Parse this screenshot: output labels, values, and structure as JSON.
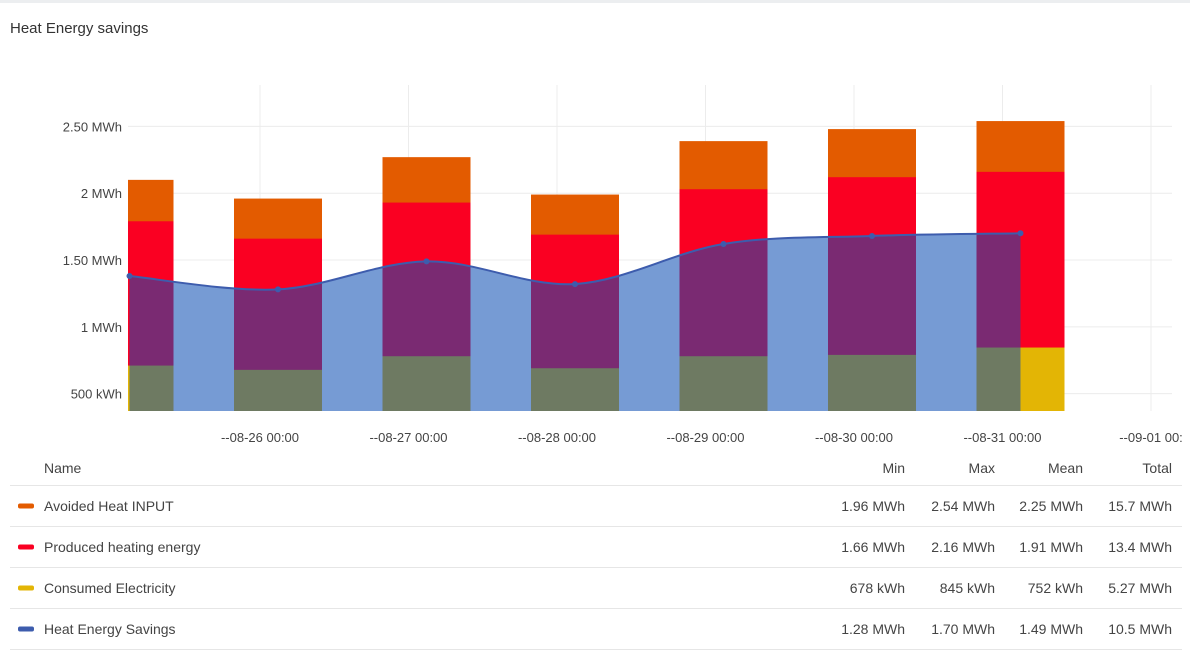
{
  "panel": {
    "title": "Heat Energy savings"
  },
  "chart_data": {
    "type": "bar",
    "title": "Heat Energy savings",
    "x": [
      "08-25",
      "08-26",
      "08-27",
      "08-28",
      "08-29",
      "08-30",
      "08-31"
    ],
    "x_ticks": [
      "--08-26 00:00",
      "--08-27 00:00",
      "--08-28 00:00",
      "--08-29 00:00",
      "--08-30 00:00",
      "--08-31 00:00",
      "--09-01 00:"
    ],
    "y_ticks": [
      {
        "value": 0.5,
        "label": "500 kWh"
      },
      {
        "value": 1.0,
        "label": "1 MWh"
      },
      {
        "value": 1.5,
        "label": "1.50 MWh"
      },
      {
        "value": 2.0,
        "label": "2 MWh"
      },
      {
        "value": 2.5,
        "label": "2.50 MWh"
      }
    ],
    "y_unit": "MWh",
    "ylim": [
      0.37,
      2.81
    ],
    "grid": true,
    "legend_placement": "bottom-table",
    "series": [
      {
        "name": "Avoided Heat INPUT",
        "kind": "bar",
        "color": "#e35b00",
        "values": [
          2.1,
          1.96,
          2.27,
          1.99,
          2.39,
          2.48,
          2.54
        ]
      },
      {
        "name": "Produced heating energy",
        "kind": "bar",
        "color": "#fa0022",
        "values": [
          1.79,
          1.66,
          1.93,
          1.69,
          2.03,
          2.12,
          2.16
        ]
      },
      {
        "name": "Consumed Electricity",
        "kind": "bar",
        "color": "#e3b505",
        "values": [
          0.71,
          0.678,
          0.78,
          0.69,
          0.78,
          0.79,
          0.845
        ]
      },
      {
        "name": "Heat Energy Savings",
        "kind": "area-line",
        "color": "#3d5cad",
        "fill": "#769bd4",
        "values": [
          1.38,
          1.28,
          1.49,
          1.32,
          1.62,
          1.68,
          1.7
        ]
      }
    ]
  },
  "legend": {
    "headers": {
      "name": "Name",
      "min": "Min",
      "max": "Max",
      "mean": "Mean",
      "total": "Total"
    },
    "rows": [
      {
        "name": "Avoided Heat INPUT",
        "color": "#e35b00",
        "min": "1.96 MWh",
        "max": "2.54 MWh",
        "mean": "2.25 MWh",
        "total": "15.7 MWh"
      },
      {
        "name": "Produced heating energy",
        "color": "#fa0022",
        "min": "1.66 MWh",
        "max": "2.16 MWh",
        "mean": "1.91 MWh",
        "total": "13.4 MWh"
      },
      {
        "name": "Consumed Electricity",
        "color": "#e3b505",
        "min": "678 kWh",
        "max": "845 kWh",
        "mean": "752 kWh",
        "total": "5.27 MWh"
      },
      {
        "name": "Heat Energy Savings",
        "color": "#3d5cad",
        "min": "1.28 MWh",
        "max": "1.70 MWh",
        "mean": "1.49 MWh",
        "total": "10.5 MWh"
      }
    ]
  }
}
